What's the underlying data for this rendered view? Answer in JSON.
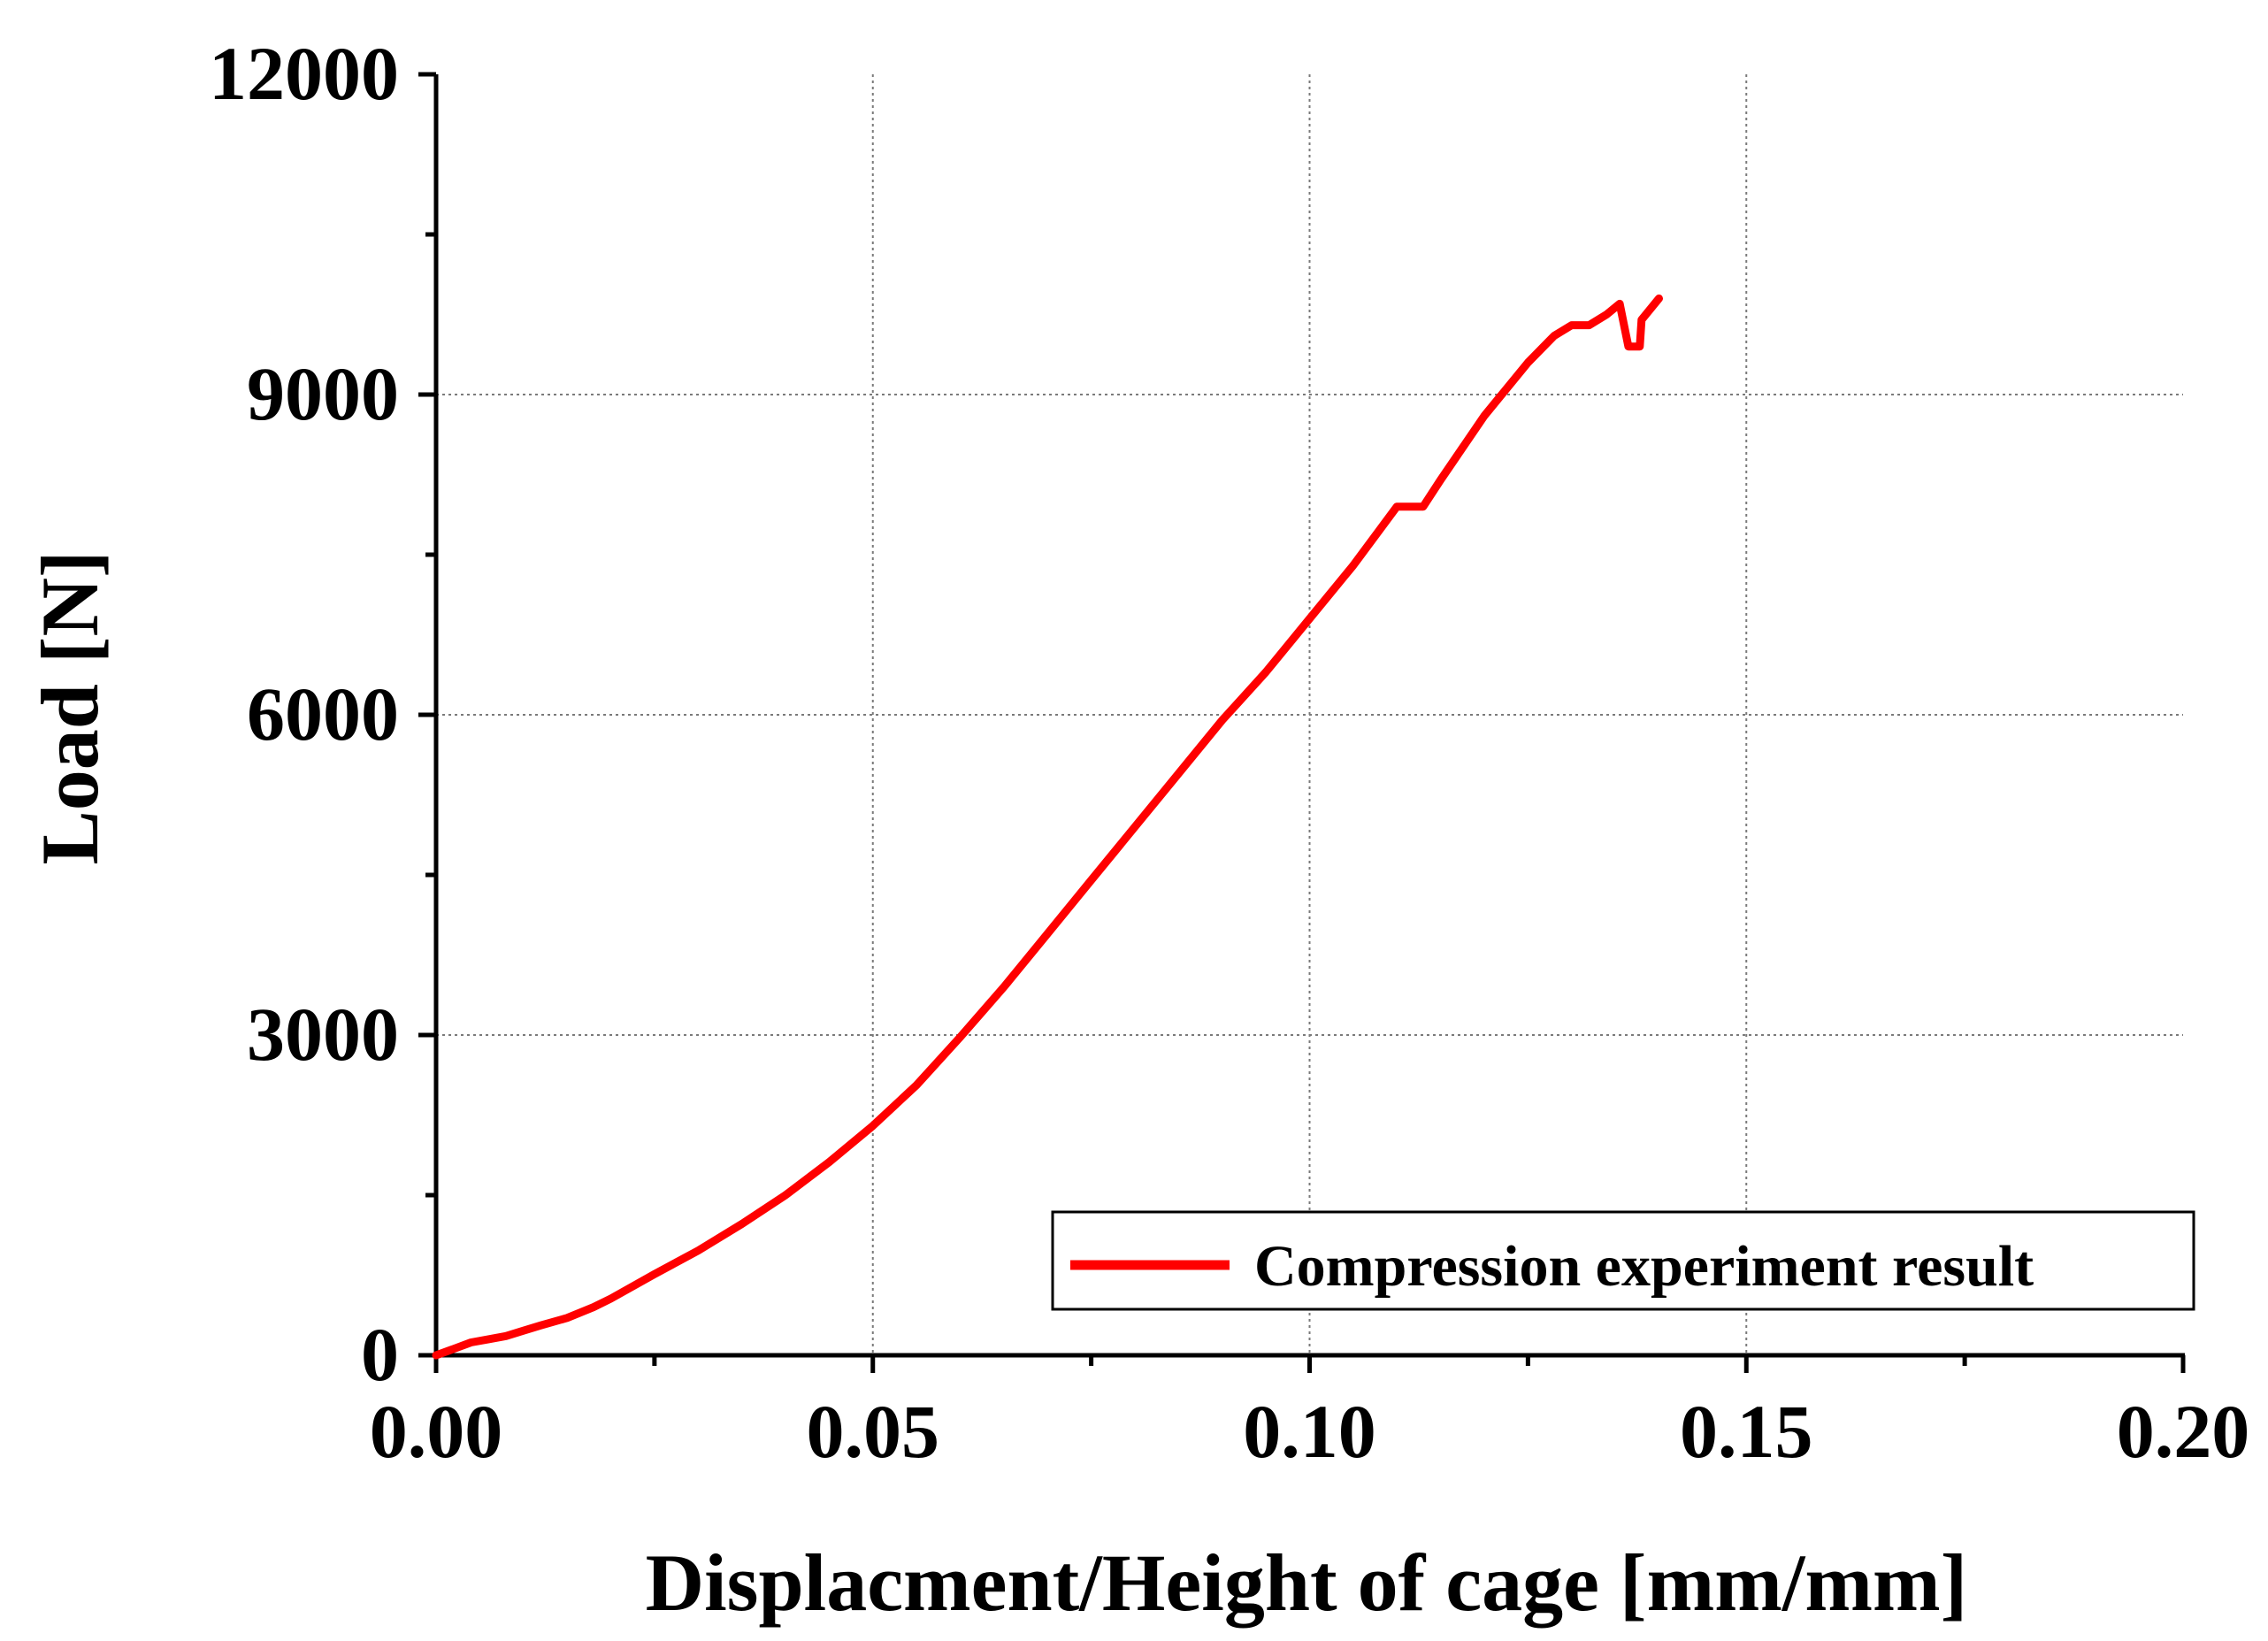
{
  "chart_data": {
    "type": "line",
    "title": "",
    "xlabel": "Displacment/Height of cage [mm/mm]",
    "ylabel": "Load [N]",
    "xlim": [
      0,
      0.2
    ],
    "ylim": [
      0,
      12000
    ],
    "x_ticks": [
      "0.00",
      "0.05",
      "0.10",
      "0.15",
      "0.20"
    ],
    "x_tick_values": [
      0,
      0.05,
      0.1,
      0.15,
      0.2
    ],
    "y_ticks": [
      "0",
      "3000",
      "6000",
      "9000",
      "12000"
    ],
    "y_tick_values": [
      0,
      3000,
      6000,
      9000,
      12000
    ],
    "grid": true,
    "legend_position": "bottom-right",
    "series": [
      {
        "name": "Compression experiment result",
        "color": "#ff0000",
        "x": [
          0.0,
          0.002,
          0.004,
          0.006,
          0.008,
          0.01,
          0.012,
          0.015,
          0.018,
          0.02,
          0.025,
          0.03,
          0.035,
          0.04,
          0.045,
          0.05,
          0.055,
          0.06,
          0.065,
          0.07,
          0.075,
          0.08,
          0.085,
          0.09,
          0.095,
          0.1,
          0.105,
          0.11,
          0.113,
          0.115,
          0.12,
          0.125,
          0.128,
          0.13,
          0.132,
          0.134,
          0.1355,
          0.136,
          0.1365,
          0.137,
          0.1378,
          0.138,
          0.139,
          0.14
        ],
        "y": [
          0,
          60,
          120,
          150,
          180,
          230,
          280,
          350,
          450,
          530,
          760,
          980,
          1230,
          1500,
          1810,
          2150,
          2530,
          2980,
          3450,
          3950,
          4450,
          4950,
          5450,
          5950,
          6400,
          6900,
          7400,
          7950,
          7950,
          8200,
          8800,
          9300,
          9550,
          9650,
          9650,
          9750,
          9850,
          9650,
          9450,
          9450,
          9450,
          9700,
          9800,
          9900
        ]
      }
    ]
  }
}
